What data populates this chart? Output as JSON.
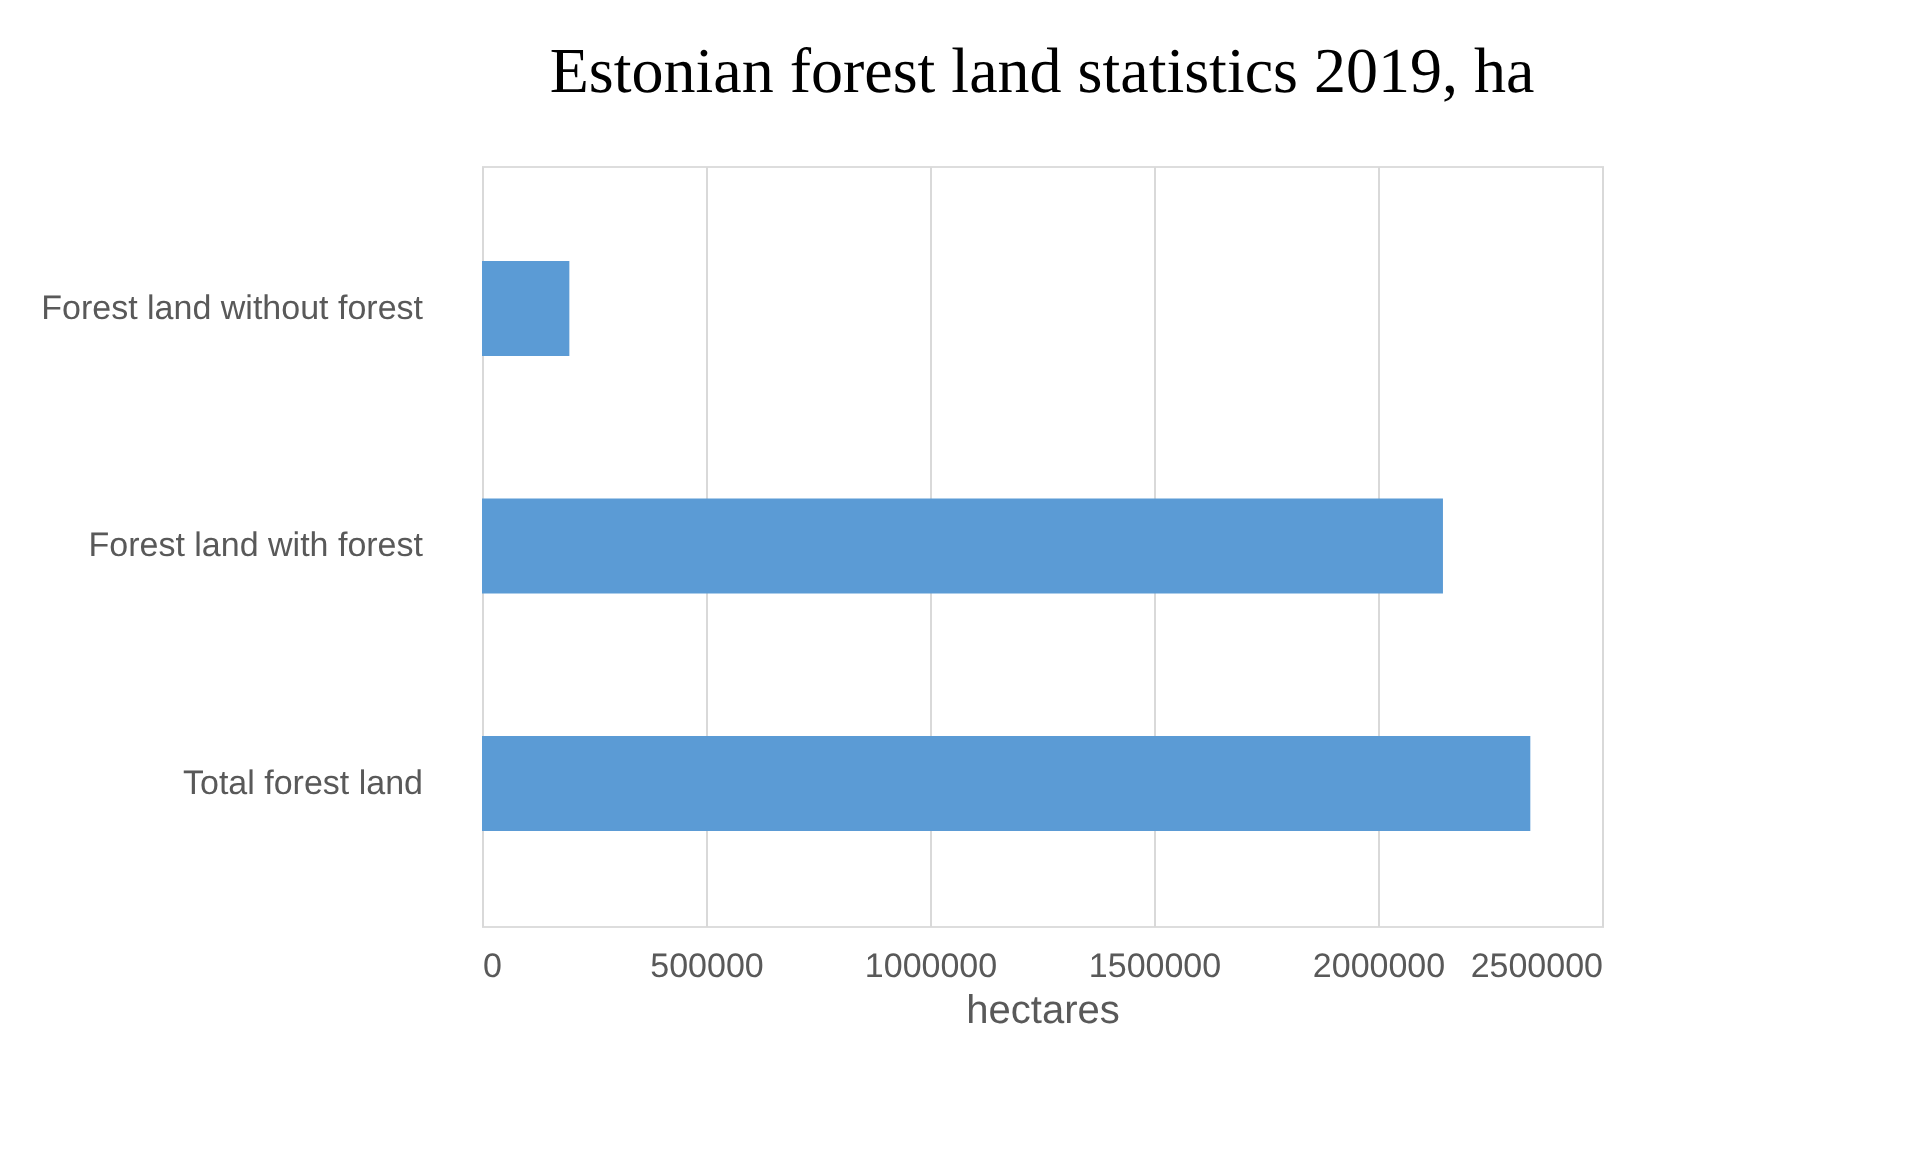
{
  "chart_data": {
    "type": "bar",
    "orientation": "horizontal",
    "title": "Estonian forest land statistics 2019, ha",
    "categories": [
      "Forest land without forest",
      "Forest land with forest",
      "Total forest land"
    ],
    "values": [
      195000,
      2145000,
      2340000
    ],
    "color": "#5b9bd5",
    "xlabel": "hectares",
    "xlim": [
      0,
      2500000
    ],
    "xticks": [
      0,
      500000,
      1000000,
      1500000,
      2000000,
      2500000
    ],
    "grid": "x"
  }
}
